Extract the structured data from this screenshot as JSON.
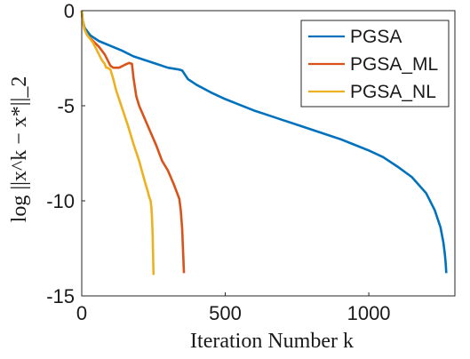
{
  "chart_data": {
    "type": "line",
    "xlabel": "Iteration Number k",
    "ylabel": "log ||x^k − x*||_2",
    "xlim": [
      0,
      1300
    ],
    "ylim": [
      -15,
      0
    ],
    "x_ticks": [
      "0",
      "500",
      "1000"
    ],
    "y_ticks": [
      "0",
      "-5",
      "-10",
      "-15"
    ],
    "grid": false,
    "legend_position": "top-right",
    "series": [
      {
        "name": "PGSA",
        "color": "#0072BD",
        "x": [
          0,
          3,
          10,
          30,
          60,
          100,
          140,
          180,
          220,
          260,
          300,
          340,
          350,
          370,
          400,
          450,
          500,
          550,
          600,
          650,
          700,
          750,
          800,
          850,
          900,
          950,
          1000,
          1050,
          1100,
          1150,
          1200,
          1230,
          1250,
          1260,
          1265,
          1268,
          1270
        ],
        "y": [
          0,
          -0.5,
          -0.9,
          -1.3,
          -1.6,
          -1.85,
          -2.1,
          -2.4,
          -2.6,
          -2.8,
          -3.0,
          -3.1,
          -3.15,
          -3.6,
          -3.9,
          -4.3,
          -4.65,
          -4.95,
          -5.25,
          -5.5,
          -5.75,
          -6.0,
          -6.25,
          -6.5,
          -6.75,
          -7.05,
          -7.35,
          -7.7,
          -8.2,
          -8.75,
          -9.6,
          -10.5,
          -11.4,
          -12.2,
          -12.8,
          -13.3,
          -13.8
        ]
      },
      {
        "name": "PGSA_ML",
        "color": "#D95319",
        "x": [
          0,
          3,
          10,
          20,
          40,
          60,
          80,
          100,
          110,
          130,
          150,
          165,
          175,
          180,
          185,
          190,
          200,
          220,
          240,
          260,
          280,
          300,
          320,
          340,
          345,
          350,
          352,
          354,
          356
        ],
        "y": [
          0,
          -0.5,
          -1.0,
          -1.3,
          -1.6,
          -1.9,
          -2.3,
          -2.9,
          -3.0,
          -3.0,
          -2.85,
          -2.75,
          -2.8,
          -3.5,
          -4.0,
          -4.5,
          -5.0,
          -5.7,
          -6.4,
          -7.1,
          -7.9,
          -8.4,
          -9.1,
          -9.9,
          -10.5,
          -11.5,
          -12.3,
          -13.0,
          -13.8
        ]
      },
      {
        "name": "PGSA_NL",
        "color": "#EDB120",
        "x": [
          0,
          3,
          10,
          20,
          30,
          40,
          50,
          60,
          70,
          80,
          85,
          90,
          100,
          110,
          120,
          140,
          160,
          180,
          200,
          220,
          230,
          235,
          240,
          243,
          245,
          247,
          248,
          249,
          250
        ],
        "y": [
          0,
          -0.5,
          -1.0,
          -1.3,
          -1.5,
          -1.7,
          -2.0,
          -2.3,
          -2.6,
          -2.8,
          -3.0,
          -3.0,
          -3.1,
          -3.6,
          -4.2,
          -5.1,
          -6.0,
          -7.0,
          -7.9,
          -9.0,
          -9.5,
          -9.8,
          -10.0,
          -10.4,
          -11.0,
          -11.8,
          -12.5,
          -13.2,
          -13.9
        ]
      }
    ]
  }
}
